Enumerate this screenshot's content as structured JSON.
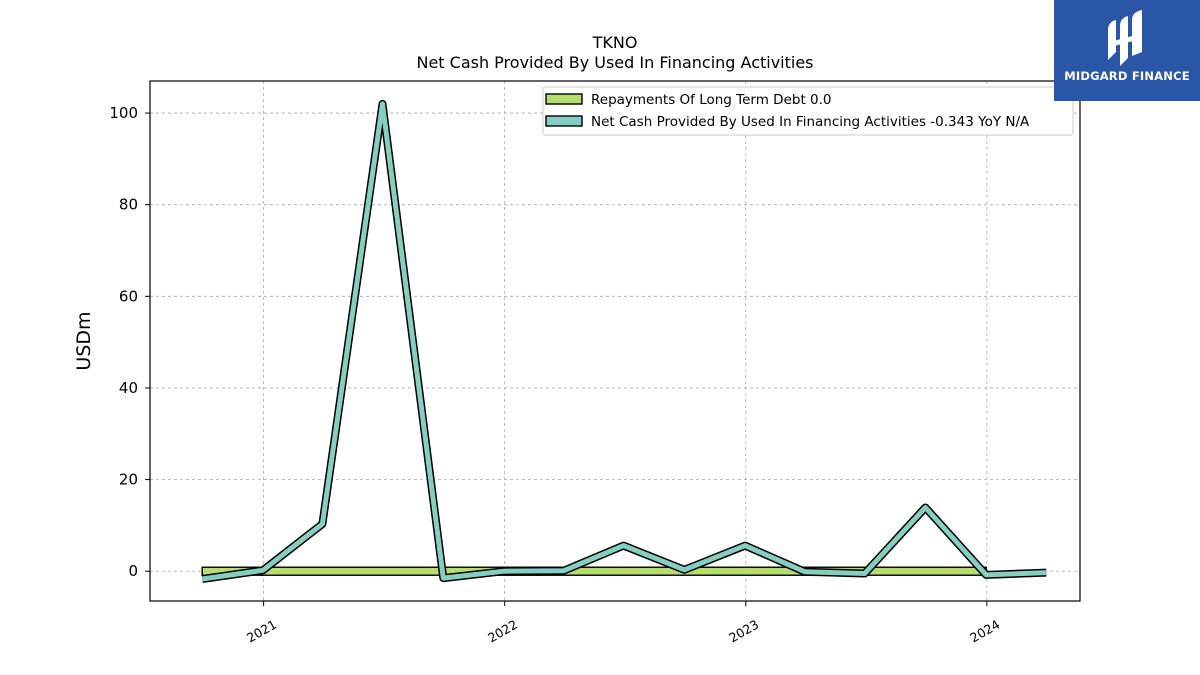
{
  "chart_data": {
    "type": "line",
    "title": "TKNO",
    "subtitle": "Net Cash Provided By Used In Financing Activities",
    "ylabel": "USDm",
    "xlabel": "",
    "ylim": [
      -6.5,
      107
    ],
    "xlim": [
      "2020-07-13",
      "2024-05-21"
    ],
    "yticks": [
      0,
      20,
      40,
      60,
      80,
      100
    ],
    "xticks": [
      "2021",
      "2022",
      "2023",
      "2024"
    ],
    "grid": true,
    "legend_position": "top-right",
    "series": [
      {
        "name": "Repayments Of Long Term Debt  0.0",
        "style": "bar",
        "color": "#b5de6e",
        "x": [
          "2020-09-30",
          "2023-12-31"
        ],
        "values": [
          0,
          0
        ]
      },
      {
        "name": "Net Cash Provided By Used In Financing Activities  -0.343 YoY N/A",
        "style": "line",
        "color": "#85cfc0",
        "x": [
          "2020-09-30",
          "2020-12-31",
          "2021-03-31",
          "2021-06-30",
          "2021-09-30",
          "2021-12-31",
          "2022-03-31",
          "2022-06-30",
          "2022-09-30",
          "2022-12-31",
          "2023-03-31",
          "2023-06-30",
          "2023-09-30",
          "2023-12-31",
          "2024-03-31"
        ],
        "values": [
          -1.7,
          0.2,
          10.3,
          102,
          -1.5,
          0.0,
          0.1,
          5.6,
          0.3,
          5.6,
          -0.1,
          -0.5,
          13.9,
          -0.8,
          -0.3
        ]
      }
    ]
  },
  "logo": {
    "text": "MIDGARD FINANCE"
  }
}
